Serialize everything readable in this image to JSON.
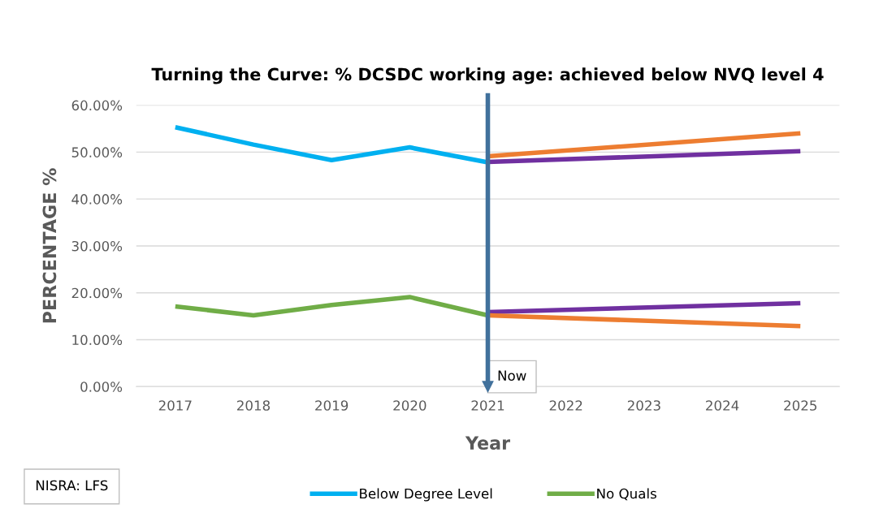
{
  "chart_data": {
    "type": "line",
    "title": "Turning the Curve: % DCSDC working age: achieved below NVQ level 4",
    "xlabel": "Year",
    "ylabel": "PERCENTAGE %",
    "categories": [
      "2017",
      "2018",
      "2019",
      "2020",
      "2021",
      "2022",
      "2023",
      "2024",
      "2025"
    ],
    "series": [
      {
        "name": "Below Degree Level",
        "color": "#00b0f0",
        "values": [
          55.3,
          51.6,
          48.3,
          51.0,
          47.8,
          null,
          null,
          null,
          null
        ]
      },
      {
        "name": "No Quals",
        "color": "#70ad47",
        "values": [
          17.1,
          15.2,
          17.4,
          19.1,
          15.2,
          null,
          null,
          null,
          null
        ]
      },
      {
        "color": "#ed7d31",
        "values": [
          null,
          null,
          null,
          null,
          49.1,
          null,
          null,
          null,
          54.0
        ]
      },
      {
        "color": "#7030a0",
        "values": [
          null,
          null,
          null,
          null,
          47.9,
          null,
          null,
          null,
          50.2
        ]
      },
      {
        "color": "#7030a0",
        "values": [
          null,
          null,
          null,
          null,
          15.9,
          null,
          null,
          null,
          17.8
        ]
      },
      {
        "color": "#ed7d31",
        "values": [
          null,
          null,
          null,
          null,
          15.2,
          null,
          null,
          null,
          12.9
        ]
      }
    ],
    "ylim": [
      0,
      60
    ],
    "yticks": [
      {
        "value": 0,
        "label": "0.00%"
      },
      {
        "value": 10,
        "label": "10.00%"
      },
      {
        "value": 20,
        "label": "20.00%"
      },
      {
        "value": 30,
        "label": "30.00%"
      },
      {
        "value": 40,
        "label": "40.00%"
      },
      {
        "value": 50,
        "label": "50.00%"
      },
      {
        "value": 60,
        "label": "60.00%"
      }
    ],
    "grid": "y",
    "legend": "bottom",
    "marker": "none",
    "line_style": "solid",
    "ref_lines": [
      {
        "axis": "x",
        "value": "2021",
        "label": "Now",
        "color": "#41719c"
      }
    ],
    "annotations": [
      "NISRA: LFS"
    ]
  }
}
